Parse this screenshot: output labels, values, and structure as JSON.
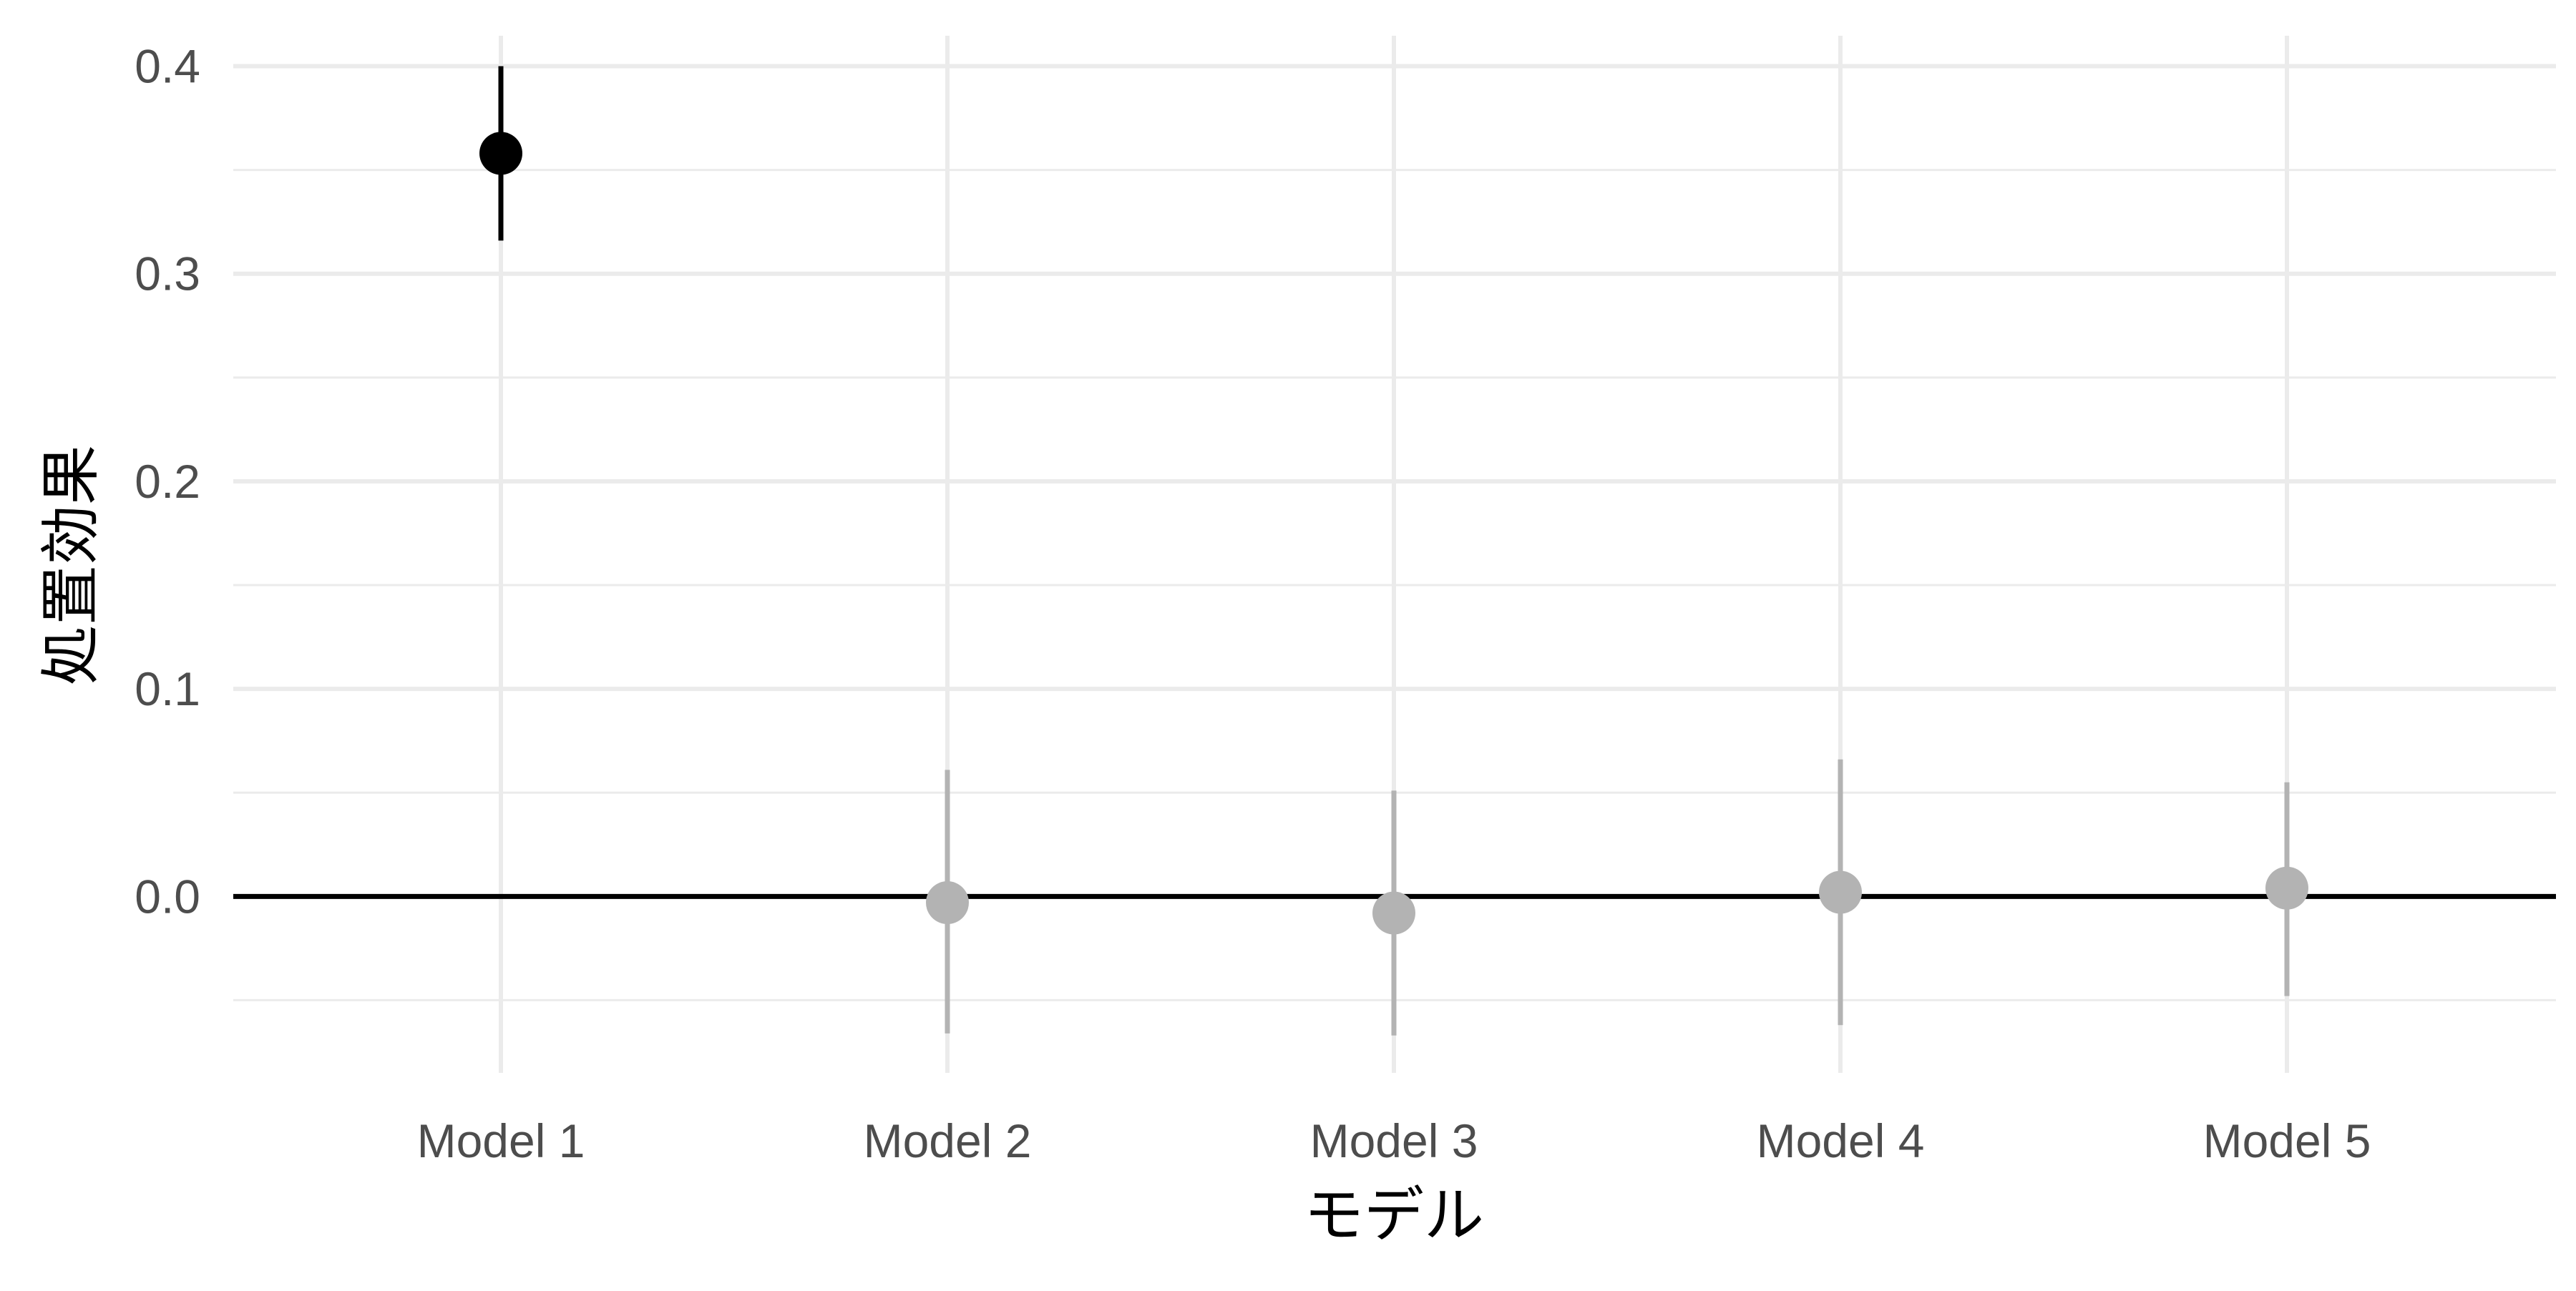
{
  "chart_data": {
    "type": "scatter",
    "subtype": "point-range",
    "title": "",
    "xlabel": "モデル",
    "ylabel": "処置効果",
    "categories": [
      "Model 1",
      "Model 2",
      "Model 3",
      "Model 4",
      "Model 5"
    ],
    "estimates": [
      0.358,
      -0.003,
      -0.008,
      0.002,
      0.004
    ],
    "ci_lower": [
      0.316,
      -0.066,
      -0.067,
      -0.062,
      -0.048
    ],
    "ci_upper": [
      0.4,
      0.061,
      0.051,
      0.066,
      0.055
    ],
    "highlight": [
      true,
      false,
      false,
      false,
      false
    ],
    "ylim": [
      -0.085,
      0.425
    ],
    "yticks": [
      0.0,
      0.1,
      0.2,
      0.3,
      0.4
    ],
    "ytick_labels": [
      "0.0",
      "0.1",
      "0.2",
      "0.3",
      "0.4"
    ],
    "y_minor_ticks": [
      -0.05,
      0.05,
      0.15,
      0.25,
      0.35
    ],
    "reference_line": 0,
    "grid": true,
    "legend": "none",
    "colors": {
      "highlight": "#000000",
      "other": "#b3b3b3",
      "grid_major": "#ebebeb",
      "grid_minor": "#ebebeb",
      "reference": "#000000",
      "tick_text": "#4d4d4d",
      "axis_title": "#000000"
    }
  }
}
